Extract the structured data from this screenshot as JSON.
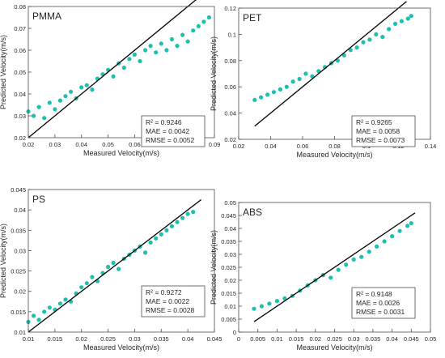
{
  "chart_data": [
    {
      "type": "scatter",
      "title": "PMMA",
      "xlabel": "Measured Velocity(m/s)",
      "ylabel": "Predicted Velocity(m/s)",
      "xlim": [
        0.02,
        0.09
      ],
      "ylim": [
        0.02,
        0.08
      ],
      "xticks": [
        "0.02",
        "0.03",
        "0.04",
        "0.05",
        "0.06",
        "0.07",
        "0.08",
        "0.09"
      ],
      "yticks": [
        "0.02",
        "0.03",
        "0.04",
        "0.05",
        "0.06",
        "0.07",
        "0.08"
      ],
      "fit_line": [
        [
          0.02,
          0.02
        ],
        [
          0.09,
          0.09
        ]
      ],
      "stats": [
        "R² = 0.9246",
        "MAE = 0.0042",
        "RMSE = 0.0052"
      ],
      "x": [
        0.02,
        0.022,
        0.024,
        0.026,
        0.028,
        0.03,
        0.032,
        0.034,
        0.036,
        0.038,
        0.04,
        0.042,
        0.044,
        0.046,
        0.048,
        0.05,
        0.052,
        0.054,
        0.056,
        0.058,
        0.06,
        0.062,
        0.064,
        0.066,
        0.068,
        0.07,
        0.072,
        0.074,
        0.076,
        0.078,
        0.08,
        0.082,
        0.084,
        0.086,
        0.088
      ],
      "y": [
        0.032,
        0.03,
        0.034,
        0.029,
        0.036,
        0.033,
        0.037,
        0.039,
        0.041,
        0.038,
        0.043,
        0.044,
        0.042,
        0.047,
        0.049,
        0.051,
        0.048,
        0.054,
        0.052,
        0.056,
        0.058,
        0.055,
        0.06,
        0.062,
        0.059,
        0.063,
        0.06,
        0.065,
        0.062,
        0.067,
        0.064,
        0.069,
        0.071,
        0.073,
        0.075
      ]
    },
    {
      "type": "scatter",
      "title": "PET",
      "xlabel": "Measured Velocity(m/s)",
      "ylabel": "Predicted Velocity(m/s)",
      "xlim": [
        0.02,
        0.14
      ],
      "ylim": [
        0.02,
        0.12
      ],
      "xticks": [
        "0.02",
        "0.04",
        "0.06",
        "0.08",
        "0.1",
        "0.12",
        "0.14"
      ],
      "yticks": [
        "0.02",
        "0.04",
        "0.06",
        "0.08",
        "0.1",
        "0.12"
      ],
      "fit_line": [
        [
          0.03,
          0.03
        ],
        [
          0.125,
          0.125
        ]
      ],
      "stats": [
        "R² = 0.9265",
        "MAE = 0.0058",
        "RMSE = 0.0073"
      ],
      "x": [
        0.03,
        0.034,
        0.038,
        0.042,
        0.046,
        0.05,
        0.054,
        0.058,
        0.062,
        0.066,
        0.07,
        0.074,
        0.078,
        0.082,
        0.086,
        0.09,
        0.094,
        0.098,
        0.102,
        0.106,
        0.11,
        0.114,
        0.118,
        0.122,
        0.126,
        0.128
      ],
      "y": [
        0.05,
        0.052,
        0.054,
        0.056,
        0.058,
        0.06,
        0.064,
        0.066,
        0.07,
        0.068,
        0.072,
        0.075,
        0.078,
        0.08,
        0.084,
        0.088,
        0.09,
        0.094,
        0.096,
        0.1,
        0.098,
        0.104,
        0.108,
        0.11,
        0.112,
        0.114
      ]
    },
    {
      "type": "scatter",
      "title": "PS",
      "xlabel": "Measured Velocity(m/s)",
      "ylabel": "Predicted Velocity(m/s)",
      "xlim": [
        0.01,
        0.045
      ],
      "ylim": [
        0.01,
        0.045
      ],
      "xticks": [
        "0.01",
        "0.015",
        "0.02",
        "0.025",
        "0.03",
        "0.035",
        "0.04",
        "0.045"
      ],
      "yticks": [
        "0.01",
        "0.015",
        "0.02",
        "0.025",
        "0.03",
        "0.035",
        "0.04",
        "0.045"
      ],
      "fit_line": [
        [
          0.01,
          0.01
        ],
        [
          0.0425,
          0.0425
        ]
      ],
      "stats": [
        "R² = 0.9272",
        "MAE = 0.0022",
        "RMSE = 0.0028"
      ],
      "x": [
        0.01,
        0.011,
        0.012,
        0.013,
        0.014,
        0.015,
        0.016,
        0.017,
        0.018,
        0.019,
        0.02,
        0.021,
        0.022,
        0.023,
        0.024,
        0.025,
        0.026,
        0.027,
        0.028,
        0.029,
        0.03,
        0.031,
        0.032,
        0.033,
        0.034,
        0.035,
        0.036,
        0.037,
        0.038,
        0.039,
        0.04,
        0.041
      ],
      "y": [
        0.0125,
        0.014,
        0.013,
        0.015,
        0.016,
        0.0155,
        0.017,
        0.018,
        0.0175,
        0.0195,
        0.021,
        0.022,
        0.0235,
        0.0225,
        0.0245,
        0.026,
        0.027,
        0.0255,
        0.028,
        0.029,
        0.03,
        0.031,
        0.0295,
        0.032,
        0.033,
        0.034,
        0.035,
        0.036,
        0.037,
        0.038,
        0.039,
        0.0395
      ]
    },
    {
      "type": "scatter",
      "title": "ABS",
      "xlabel": "Measured Velocity(m/s)",
      "ylabel": "Predicted Velocity(m/s)",
      "xlim": [
        0,
        0.05
      ],
      "ylim": [
        0,
        0.05
      ],
      "xticks": [
        "0",
        "0.005",
        "0.01",
        "0.015",
        "0.02",
        "0.025",
        "0.03",
        "0.035",
        "0.04",
        "0.045",
        "0.05"
      ],
      "yticks": [
        "0",
        "0.005",
        "0.01",
        "0.015",
        "0.02",
        "0.025",
        "0.03",
        "0.035",
        "0.04",
        "0.045",
        "0.05"
      ],
      "fit_line": [
        [
          0.004,
          0.004
        ],
        [
          0.046,
          0.046
        ]
      ],
      "stats": [
        "R² = 0.9148",
        "MAE = 0.0026",
        "RMSE = 0.0031"
      ],
      "x": [
        0.004,
        0.006,
        0.008,
        0.01,
        0.012,
        0.014,
        0.016,
        0.018,
        0.02,
        0.022,
        0.024,
        0.026,
        0.028,
        0.03,
        0.032,
        0.034,
        0.036,
        0.038,
        0.04,
        0.042,
        0.044,
        0.045
      ],
      "y": [
        0.009,
        0.01,
        0.011,
        0.012,
        0.013,
        0.014,
        0.016,
        0.018,
        0.02,
        0.022,
        0.021,
        0.024,
        0.026,
        0.028,
        0.029,
        0.031,
        0.033,
        0.035,
        0.037,
        0.039,
        0.041,
        0.042
      ]
    }
  ],
  "colors": {
    "marker": "#1fbfb0",
    "fit_line": "#000000",
    "axis": "#4d4d4d",
    "label": "#262626"
  }
}
